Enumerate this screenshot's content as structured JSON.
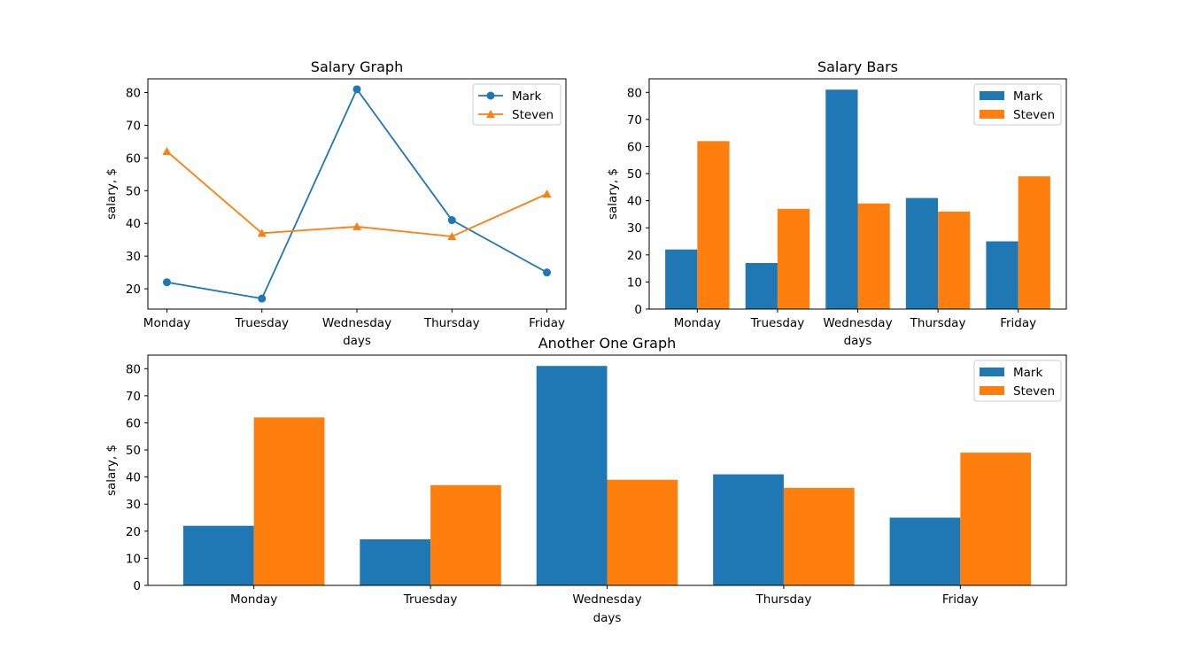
{
  "chart_data": [
    {
      "type": "line",
      "title": "Salary Graph",
      "xlabel": "days",
      "ylabel": "salary, $",
      "categories": [
        "Monday",
        "Truesday",
        "Wednesday",
        "Thursday",
        "Friday"
      ],
      "series": [
        {
          "name": "Mark",
          "values": [
            22,
            17,
            81,
            41,
            25
          ],
          "color": "#1f77b4",
          "marker": "circle"
        },
        {
          "name": "Steven",
          "values": [
            62,
            37,
            39,
            36,
            49
          ],
          "color": "#ff7f0e",
          "marker": "triangle"
        }
      ],
      "ylim": [
        13.8,
        84.2
      ],
      "yticks": [
        20,
        30,
        40,
        50,
        60,
        70,
        80
      ],
      "legend": "top-right",
      "grid": false
    },
    {
      "type": "bar",
      "title": "Salary Bars",
      "xlabel": "days",
      "ylabel": "salary, $",
      "categories": [
        "Monday",
        "Truesday",
        "Wednesday",
        "Thursday",
        "Friday"
      ],
      "series": [
        {
          "name": "Mark",
          "values": [
            22,
            17,
            81,
            41,
            25
          ],
          "color": "#1f77b4"
        },
        {
          "name": "Steven",
          "values": [
            62,
            37,
            39,
            36,
            49
          ],
          "color": "#ff7f0e"
        }
      ],
      "ylim": [
        0,
        85
      ],
      "yticks": [
        0,
        10,
        20,
        30,
        40,
        50,
        60,
        70,
        80
      ],
      "legend": "top-right",
      "grid": false
    },
    {
      "type": "bar",
      "title": "Another One Graph",
      "xlabel": "days",
      "ylabel": "salary, $",
      "categories": [
        "Monday",
        "Truesday",
        "Wednesday",
        "Thursday",
        "Friday"
      ],
      "series": [
        {
          "name": "Mark",
          "values": [
            22,
            17,
            81,
            41,
            25
          ],
          "color": "#1f77b4"
        },
        {
          "name": "Steven",
          "values": [
            62,
            37,
            39,
            36,
            49
          ],
          "color": "#ff7f0e"
        }
      ],
      "ylim": [
        0,
        85
      ],
      "yticks": [
        0,
        10,
        20,
        30,
        40,
        50,
        60,
        70,
        80
      ],
      "legend": "top-right",
      "grid": false
    }
  ]
}
